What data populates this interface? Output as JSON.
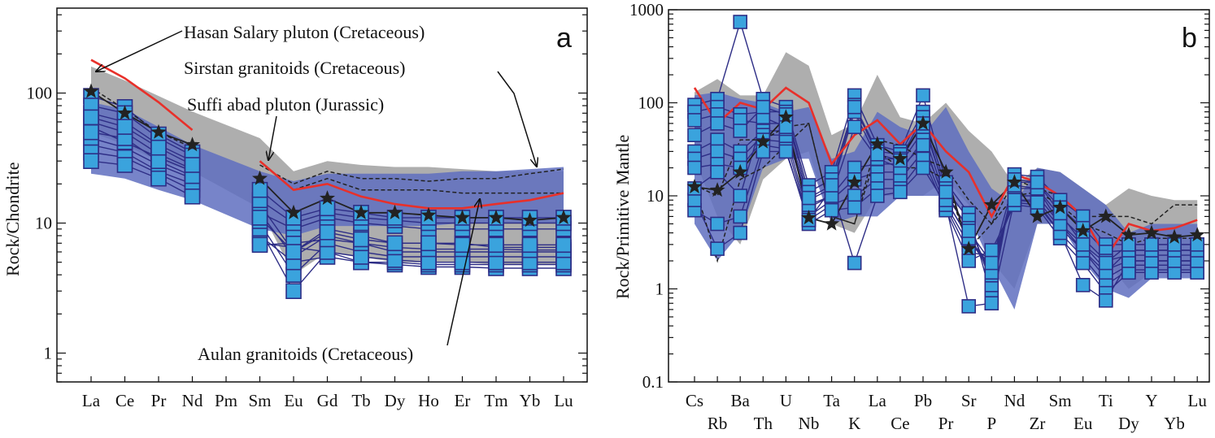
{
  "colors": {
    "sample_fill": "#3aa3dd",
    "sample_stroke": "#2e2e86",
    "sample_line": "#2e2e86",
    "blue_field": "#5f6fc0",
    "gray_field": "#a5a5a5",
    "red_line": "#e8302a",
    "star": "#222222",
    "dashed": "#222222"
  },
  "chart_data": [
    {
      "id": "a",
      "type": "line",
      "panel_label": "a",
      "ylabel": "Rock/Chondrite",
      "yscale": "log",
      "ylim": [
        0.6,
        450
      ],
      "ytick_labels": [
        {
          "v": 1,
          "label": "1"
        },
        {
          "v": 10,
          "label": "10"
        },
        {
          "v": 100,
          "label": "100"
        }
      ],
      "categories": [
        "La",
        "Ce",
        "Pr",
        "Nd",
        "Pm",
        "Sm",
        "Eu",
        "Gd",
        "Tb",
        "Dy",
        "Ho",
        "Er",
        "Tm",
        "Yb",
        "Lu"
      ],
      "annotations": [
        "Hasan Salary pluton (Cretaceous)",
        "Sirstan granitoids (Cretaceous)",
        "Suffi abad pluton (Jurassic)",
        "Aulan granitoids (Cretaceous)"
      ],
      "gray_field": {
        "upper": [
          160,
          125,
          95,
          72,
          null,
          45,
          25,
          30,
          28,
          27,
          27,
          26,
          25,
          25,
          25
        ],
        "lower": [
          50,
          40,
          30,
          25,
          null,
          13,
          4,
          6,
          5.5,
          5,
          5,
          5,
          4.8,
          4.8,
          4.8
        ]
      },
      "blue_field": {
        "upper": [
          85,
          75,
          55,
          40,
          null,
          25,
          21,
          24,
          24,
          24,
          24,
          25,
          25,
          26,
          27
        ],
        "lower": [
          24,
          22,
          18,
          15,
          null,
          9,
          8,
          9.5,
          9.5,
          9.5,
          9.5,
          10,
          10,
          10,
          10
        ]
      },
      "red_line": [
        180,
        130,
        85,
        52,
        null,
        30,
        18,
        20,
        16,
        14,
        13,
        13,
        14,
        15,
        17
      ],
      "dashed_line": [
        110,
        75,
        50,
        38,
        null,
        28,
        20,
        25,
        22,
        22,
        21,
        22,
        22,
        24,
        26
      ],
      "dashed_line2": [
        null,
        null,
        null,
        null,
        null,
        null,
        18,
        22,
        18,
        18,
        18,
        17,
        17,
        17,
        17
      ],
      "star_series": [
        103,
        70,
        50,
        40,
        null,
        22,
        12,
        15.5,
        12,
        12,
        11.5,
        11,
        11,
        10.5,
        11
      ],
      "samples": [
        [
          95,
          78,
          48,
          35,
          null,
          14,
          6,
          9,
          8,
          7,
          7,
          7,
          6.5,
          6.5,
          6.5
        ],
        [
          70,
          60,
          40,
          30,
          null,
          12,
          5.5,
          8,
          7,
          6,
          6,
          6,
          6,
          6,
          6
        ],
        [
          60,
          50,
          34,
          26,
          null,
          10,
          4,
          7,
          6,
          5.5,
          5.5,
          5.5,
          5.5,
          5.5,
          5.5
        ],
        [
          45,
          38,
          28,
          22,
          null,
          9,
          3,
          6,
          5,
          4.8,
          4.6,
          4.6,
          4.5,
          4.5,
          4.5
        ],
        [
          40,
          35,
          25,
          20,
          null,
          8,
          5,
          5.5,
          5,
          5,
          4.8,
          4.8,
          4.8,
          4.8,
          4.8
        ],
        [
          35,
          32,
          24,
          18,
          null,
          7,
          6.5,
          6,
          5.5,
          5.2,
          5,
          5,
          5,
          5,
          5
        ],
        [
          30,
          28,
          22,
          16,
          null,
          6.8,
          7,
          7.5,
          7,
          6.5,
          6.3,
          6.3,
          6.3,
          6.2,
          6.2
        ],
        [
          55,
          42,
          32,
          25,
          null,
          12,
          9,
          11,
          10,
          9.5,
          9,
          9,
          9,
          9,
          9
        ],
        [
          50,
          45,
          30,
          23,
          null,
          15,
          10,
          12,
          11,
          10.5,
          10,
          10,
          10,
          10,
          10
        ],
        [
          80,
          70,
          45,
          33,
          null,
          18,
          11,
          13,
          12,
          11,
          11,
          11,
          11,
          11,
          11
        ],
        [
          65,
          55,
          38,
          28,
          null,
          11,
          6,
          8.5,
          7.5,
          7,
          7,
          6.8,
          6.8,
          6.8,
          6.8
        ]
      ]
    },
    {
      "id": "b",
      "type": "line",
      "panel_label": "b",
      "ylabel": "Rock/Primitive Mantle",
      "yscale": "log",
      "ylim": [
        0.1,
        1000
      ],
      "ytick_labels": [
        {
          "v": 0.1,
          "label": "0.1"
        },
        {
          "v": 1,
          "label": "1"
        },
        {
          "v": 10,
          "label": "10"
        },
        {
          "v": 100,
          "label": "100"
        },
        {
          "v": 1000,
          "label": "1000"
        }
      ],
      "categories": [
        "Cs",
        "Rb",
        "Ba",
        "Th",
        "U",
        "Nb",
        "Ta",
        "K",
        "La",
        "Ce",
        "Pb",
        "Pr",
        "Sr",
        "P",
        "Nd",
        "Zr",
        "Sm",
        "Eu",
        "Ti",
        "Dy",
        "Y",
        "Yb",
        "Lu"
      ],
      "gray_field": {
        "upper": [
          130,
          180,
          120,
          120,
          350,
          250,
          45,
          60,
          200,
          70,
          60,
          100,
          50,
          30,
          13,
          20,
          18,
          12,
          8,
          12,
          10,
          9,
          9
        ],
        "lower": [
          25,
          6,
          3,
          15,
          25,
          30,
          5,
          4,
          10,
          10,
          10,
          15,
          8,
          2,
          1,
          5,
          5,
          3,
          2,
          1,
          1.5,
          1.5,
          1.5
        ]
      },
      "blue_field": {
        "upper": [
          120,
          130,
          110,
          100,
          80,
          90,
          25,
          30,
          80,
          55,
          45,
          90,
          30,
          12,
          8,
          20,
          18,
          12,
          8,
          4,
          5,
          5,
          5
        ],
        "lower": [
          5,
          2,
          4,
          20,
          25,
          25,
          5,
          6,
          6,
          10,
          10,
          10,
          6,
          1.8,
          0.6,
          5,
          5,
          2,
          1,
          0.8,
          1.3,
          1.3,
          1.3
        ]
      },
      "red_line": [
        145,
        60,
        100,
        85,
        145,
        100,
        22,
        45,
        65,
        36,
        60,
        30,
        18,
        6,
        17,
        14,
        10,
        6,
        2.2,
        5,
        4.2,
        4.5,
        5.5
      ],
      "dashed_line": [
        13,
        10,
        40,
        40,
        55,
        60,
        6,
        5,
        40,
        35,
        25,
        20,
        9,
        5,
        15,
        12,
        10,
        6,
        6,
        6,
        5,
        8,
        8
      ],
      "dashed_line2": [
        13,
        2,
        15,
        20,
        35,
        60,
        6,
        5,
        30,
        20,
        20,
        15,
        2.7,
        5,
        10,
        11,
        8,
        5,
        4,
        3,
        3.5,
        3.5,
        3.5
      ],
      "star_series": [
        12.5,
        11.5,
        18,
        38,
        70,
        5.8,
        5,
        14,
        36,
        25,
        60,
        18,
        2.7,
        8,
        14,
        6,
        7.5,
        4.2,
        6,
        3.8,
        4,
        3.6,
        3.8
      ],
      "samples": [
        [
          95,
          110,
          740,
          110,
          90,
          13,
          18,
          120,
          35,
          30,
          120,
          14,
          6.5,
          0.8,
          17,
          16,
          9,
          6,
          3,
          3,
          3,
          3,
          3
        ],
        [
          80,
          90,
          75,
          80,
          80,
          11,
          15,
          95,
          30,
          28,
          80,
          12,
          5.5,
          1.1,
          14,
          14,
          7.5,
          4.5,
          2.5,
          2.6,
          2.6,
          2.6,
          2.6
        ],
        [
          65,
          75,
          65,
          60,
          60,
          9,
          12,
          80,
          25,
          25,
          70,
          10,
          4.5,
          1.4,
          12,
          12,
          6,
          3.5,
          2,
          2.3,
          2.3,
          2.3,
          2.3
        ],
        [
          30,
          40,
          30,
          50,
          50,
          7.5,
          10,
          20,
          22,
          22,
          50,
          9,
          3.5,
          1.7,
          10,
          10,
          5,
          3,
          1.6,
          2,
          2,
          2,
          2
        ],
        [
          25,
          30,
          25,
          45,
          45,
          6,
          9,
          15,
          18,
          18,
          40,
          8,
          3,
          2,
          9,
          9,
          4.5,
          2.6,
          1.3,
          1.8,
          1.8,
          1.8,
          1.8
        ],
        [
          20,
          22,
          20,
          40,
          38,
          5.5,
          8,
          10,
          15,
          15,
          30,
          7.5,
          2.5,
          2.2,
          8.5,
          8,
          4,
          2.2,
          1.1,
          1.6,
          1.6,
          1.6,
          1.6
        ],
        [
          7,
          5,
          6,
          35,
          32,
          5,
          7,
          7.5,
          12,
          12,
          25,
          7,
          2,
          2.6,
          8,
          7.5,
          3.5,
          1.9,
          0.9,
          1.5,
          1.5,
          1.5,
          1.5
        ],
        [
          9,
          2.7,
          4,
          30,
          30,
          5.5,
          12,
          1.9,
          10,
          11,
          20,
          8,
          0.65,
          0.7,
          9,
          8.5,
          4,
          1.1,
          0.75,
          2,
          2,
          2,
          2
        ],
        [
          12,
          18,
          10,
          70,
          55,
          8,
          10,
          55,
          25,
          20,
          35,
          9,
          3.5,
          1.5,
          13,
          12,
          5,
          2.6,
          1.5,
          2.6,
          2.6,
          2.6,
          2.6
        ],
        [
          45,
          60,
          50,
          90,
          75,
          9.5,
          13,
          90,
          28,
          24,
          60,
          11,
          4.2,
          1.9,
          15,
          14,
          6.5,
          3,
          1.9,
          3,
          3,
          3,
          3
        ]
      ]
    }
  ]
}
